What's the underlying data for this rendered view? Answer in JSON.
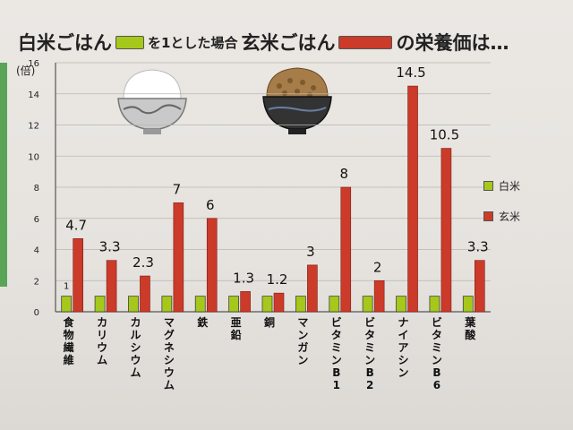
{
  "title": {
    "part1": "白米ごはん",
    "part2": "を1とした場合",
    "part3": "玄米ごはん",
    "part4": "の栄養価は…"
  },
  "colors": {
    "white_rice": "#a6c81a",
    "brown_rice": "#cc3a2a"
  },
  "chart_data": {
    "type": "bar",
    "ylabel": "(倍)",
    "ylim": [
      0,
      16
    ],
    "yticks": [
      0,
      2,
      4,
      6,
      8,
      10,
      12,
      14,
      16
    ],
    "grid": true,
    "legend_position": "right",
    "categories": [
      "食物繊維",
      "カリウム",
      "カルシウム",
      "マグネシウム",
      "鉄",
      "亜鉛",
      "銅",
      "マンガン",
      "ビタミンB1",
      "ビタミンB2",
      "ナイアシン",
      "ビタミンB6",
      "葉酸"
    ],
    "series": [
      {
        "name": "白米",
        "values": [
          1,
          1,
          1,
          1,
          1,
          1,
          1,
          1,
          1,
          1,
          1,
          1,
          1
        ]
      },
      {
        "name": "玄米",
        "values": [
          4.7,
          3.3,
          2.3,
          7,
          6,
          1.3,
          1.2,
          3,
          8,
          2,
          14.5,
          10.5,
          3.3
        ]
      }
    ],
    "data_labels_white": [
      "1"
    ],
    "data_labels_brown": [
      "4.7",
      "3.3",
      "2.3",
      "7",
      "6",
      "1.3",
      "1.2",
      "3",
      "8",
      "2",
      "14.5",
      "10.5",
      "3.3"
    ]
  },
  "icons": {
    "white_bowl": "white-rice-bowl-icon",
    "brown_bowl": "brown-rice-bowl-icon"
  }
}
